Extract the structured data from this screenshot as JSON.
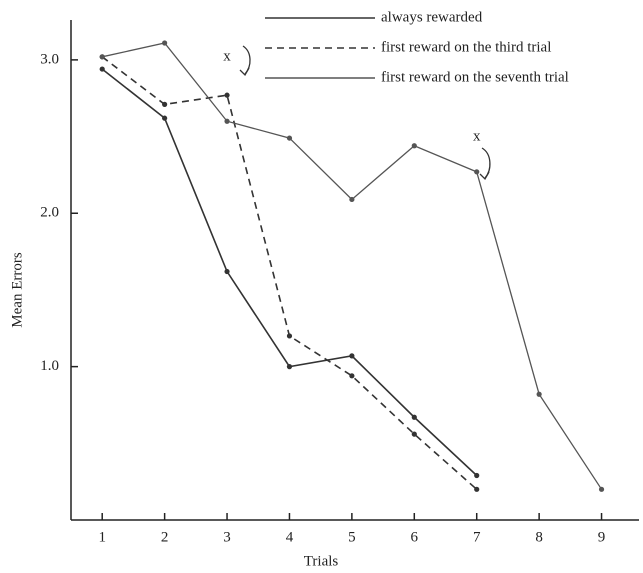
{
  "chart_data": {
    "type": "line",
    "xlabel": "Trials",
    "ylabel": "Mean Errors",
    "x": [
      1,
      2,
      3,
      4,
      5,
      6,
      7,
      8,
      9
    ],
    "series": [
      {
        "name": "always rewarded",
        "color": "#333333",
        "dash": "solid",
        "values": [
          2.94,
          2.62,
          1.62,
          1.0,
          1.07,
          0.67,
          0.29,
          null,
          null
        ]
      },
      {
        "name": "first reward on the third trial",
        "color": "#333333",
        "dash": "dashed",
        "values": [
          3.02,
          2.71,
          2.77,
          1.2,
          0.94,
          0.56,
          0.2,
          null,
          null
        ]
      },
      {
        "name": "first reward on the seventh trial",
        "color": "#555555",
        "dash": "wavy",
        "values": [
          3.02,
          3.11,
          2.6,
          2.49,
          2.09,
          2.44,
          2.27,
          0.82,
          0.2
        ]
      }
    ],
    "annotations": [
      "x",
      "x"
    ],
    "xlim": [
      0.5,
      9.6
    ],
    "xticks": [
      1,
      2,
      3,
      4,
      5,
      6,
      7,
      8,
      9
    ],
    "ylim": [
      0,
      3.26
    ],
    "yticks": [
      {
        "value": 1,
        "label": "1.0"
      },
      {
        "value": 2,
        "label": "2.0"
      },
      {
        "value": 3,
        "label": "3.0"
      }
    ],
    "grid": false,
    "legend": "top-right"
  }
}
